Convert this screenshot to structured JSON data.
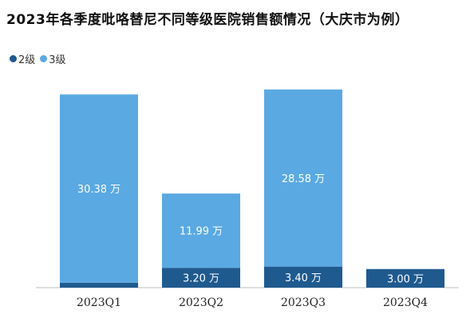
{
  "title": "2023年各季度吡咯替尼不同等级医院销售额情况（大庆市为例）",
  "legend": [
    {
      "name": "2级",
      "color": "#1f5a8f"
    },
    {
      "name": "3级",
      "color": "#5aa9e2"
    }
  ],
  "chart_data": {
    "type": "bar",
    "stacked": true,
    "title": "2023年各季度吡咯替尼不同等级医院销售额情况（大庆市为例）",
    "categories": [
      "2023Q1",
      "2023Q2",
      "2023Q3",
      "2023Q4"
    ],
    "series": [
      {
        "name": "2级",
        "color": "#1f5a8f",
        "values": [
          0.8,
          3.2,
          3.4,
          3.0
        ],
        "labels": [
          "",
          "3.20 万",
          "3.40 万",
          "3.00 万"
        ]
      },
      {
        "name": "3级",
        "color": "#5aa9e2",
        "values": [
          30.38,
          11.99,
          28.58,
          0
        ],
        "labels": [
          "30.38 万",
          "11.99 万",
          "28.58 万",
          ""
        ]
      }
    ],
    "ylim": [
      0,
      32.5
    ],
    "grid": false,
    "legend_position": "top-left"
  }
}
